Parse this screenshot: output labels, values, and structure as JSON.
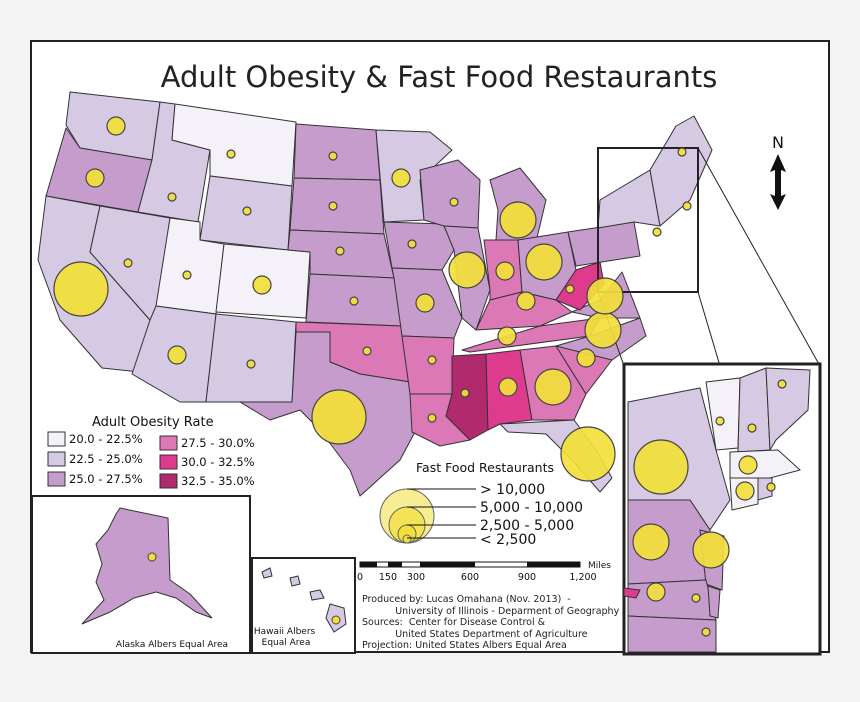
{
  "title": "Adult Obesity & Fast Food Restaurants",
  "north_label": "N",
  "obesity_legend": {
    "title": "Adult Obesity Rate",
    "classes": [
      {
        "label": "20.0 - 22.5%",
        "color": "#f4f1f8"
      },
      {
        "label": "22.5 - 25.0%",
        "color": "#d6c9e4"
      },
      {
        "label": "25.0 - 27.5%",
        "color": "#c59ccc"
      },
      {
        "label": "27.5 - 30.0%",
        "color": "#dd78b6"
      },
      {
        "label": "30.0 - 32.5%",
        "color": "#de3b8f"
      },
      {
        "label": "32.5 - 35.0%",
        "color": "#b22a6e"
      }
    ]
  },
  "restaurant_legend": {
    "title": "Fast Food Restaurants",
    "classes": [
      "> 10,000",
      "5,000 - 10,000",
      "2,500 - 5,000",
      "< 2,500"
    ],
    "circle_color": "#f2df3a"
  },
  "scale_bar": {
    "unit": "Miles",
    "ticks": [
      "0",
      "150",
      "300",
      "600",
      "900",
      "1,200"
    ]
  },
  "insets": {
    "alaska": "Alaska Albers Equal Area",
    "hawaii": "Hawaii Albers Equal Area"
  },
  "credits": [
    "Produced by: Lucas Omahana (Nov. 2013)  -",
    "           University of Illinois - Deparment of Geography",
    "Sources:  Center for Disease Control &",
    "           United States Department of Agriculture",
    "Projection: United States Albers Equal Area"
  ]
}
